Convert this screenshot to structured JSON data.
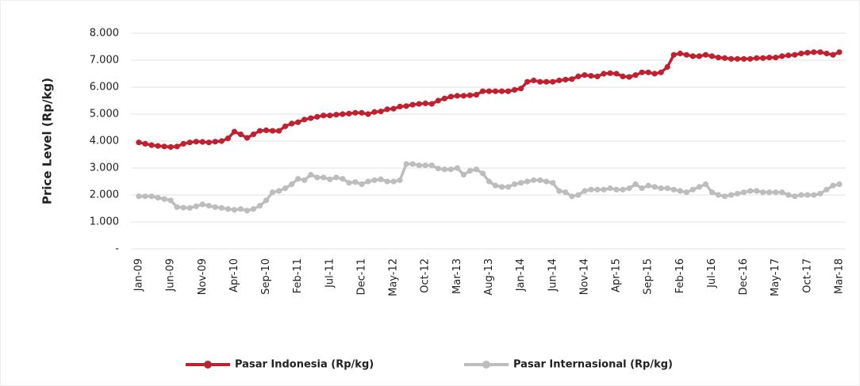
{
  "chart_data": {
    "type": "line",
    "y_label": "Price Level (Rp/kg)",
    "categories": [
      "Jan-09",
      null,
      null,
      null,
      null,
      "Jun-09",
      null,
      null,
      null,
      null,
      "Nov-09",
      null,
      null,
      null,
      null,
      "Apr-10",
      null,
      null,
      null,
      null,
      "Sep-10",
      null,
      null,
      null,
      null,
      "Feb-11",
      null,
      null,
      null,
      null,
      "Jul-11",
      null,
      null,
      null,
      null,
      "Dec-11",
      null,
      null,
      null,
      null,
      "May-12",
      null,
      null,
      null,
      null,
      "Oct-12",
      null,
      null,
      null,
      null,
      "Mar-13",
      null,
      null,
      null,
      null,
      "Aug-13",
      null,
      null,
      null,
      null,
      "Jan-14",
      null,
      null,
      null,
      null,
      "Jun-14",
      null,
      null,
      null,
      null,
      "Nov-14",
      null,
      null,
      null,
      null,
      "Apr-15",
      null,
      null,
      null,
      null,
      "Sep-15",
      null,
      null,
      null,
      null,
      "Feb-16",
      null,
      null,
      null,
      null,
      "Jul-16",
      null,
      null,
      null,
      null,
      "Dec-16",
      null,
      null,
      null,
      null,
      "May-17",
      null,
      null,
      null,
      null,
      "Oct-17",
      null,
      null,
      null,
      null,
      "Mar-18"
    ],
    "series": [
      {
        "name": "Pasar Indonesia (Rp/kg)",
        "color": "#c0202f",
        "values": [
          3950,
          3900,
          3850,
          3820,
          3800,
          3780,
          3800,
          3900,
          3950,
          3980,
          3970,
          3950,
          3980,
          4000,
          4100,
          4350,
          4250,
          4120,
          4250,
          4380,
          4400,
          4380,
          4380,
          4550,
          4650,
          4700,
          4800,
          4850,
          4900,
          4950,
          4950,
          4980,
          5000,
          5020,
          5050,
          5050,
          5000,
          5080,
          5100,
          5180,
          5200,
          5280,
          5300,
          5350,
          5380,
          5400,
          5380,
          5500,
          5580,
          5650,
          5680,
          5680,
          5700,
          5720,
          5850,
          5850,
          5850,
          5850,
          5850,
          5900,
          5950,
          6200,
          6250,
          6200,
          6200,
          6200,
          6250,
          6280,
          6300,
          6400,
          6450,
          6420,
          6400,
          6500,
          6520,
          6500,
          6400,
          6380,
          6450,
          6550,
          6550,
          6500,
          6550,
          6750,
          7200,
          7250,
          7200,
          7150,
          7150,
          7200,
          7150,
          7100,
          7080,
          7050,
          7050,
          7050,
          7050,
          7080,
          7080,
          7100,
          7100,
          7150,
          7180,
          7200,
          7250,
          7280,
          7300,
          7300,
          7250,
          7200,
          7300
        ]
      },
      {
        "name": "Pasar Internasional (Rp/kg)",
        "color": "#bdbdbd",
        "values": [
          1950,
          1950,
          1950,
          1900,
          1850,
          1800,
          1550,
          1530,
          1520,
          1580,
          1650,
          1600,
          1550,
          1520,
          1480,
          1450,
          1480,
          1420,
          1480,
          1600,
          1800,
          2100,
          2150,
          2250,
          2400,
          2600,
          2550,
          2750,
          2650,
          2650,
          2580,
          2650,
          2600,
          2450,
          2480,
          2400,
          2500,
          2550,
          2580,
          2500,
          2500,
          2550,
          3150,
          3150,
          3100,
          3100,
          3100,
          2980,
          2950,
          2950,
          3000,
          2750,
          2900,
          2950,
          2800,
          2500,
          2350,
          2300,
          2300,
          2400,
          2450,
          2500,
          2550,
          2550,
          2500,
          2450,
          2150,
          2100,
          1950,
          2000,
          2150,
          2200,
          2200,
          2200,
          2250,
          2200,
          2200,
          2250,
          2400,
          2250,
          2350,
          2300,
          2250,
          2250,
          2200,
          2150,
          2100,
          2200,
          2300,
          2400,
          2100,
          2000,
          1950,
          2000,
          2050,
          2100,
          2150,
          2150,
          2100,
          2100,
          2100,
          2100,
          2000,
          1950,
          2000,
          2000,
          2000,
          2050,
          2200,
          2350,
          2400
        ]
      }
    ],
    "ylim": [
      0,
      8000
    ],
    "yticks": [
      {
        "value": 0,
        "label": "-"
      },
      {
        "value": 1000,
        "label": "1.000"
      },
      {
        "value": 2000,
        "label": "2.000"
      },
      {
        "value": 3000,
        "label": "3.000"
      },
      {
        "value": 4000,
        "label": "4.000"
      },
      {
        "value": 5000,
        "label": "5.000"
      },
      {
        "value": 6000,
        "label": "6.000"
      },
      {
        "value": 7000,
        "label": "7.000"
      },
      {
        "value": 8000,
        "label": "8.000"
      }
    ],
    "grid": true,
    "legend": "bottom"
  }
}
